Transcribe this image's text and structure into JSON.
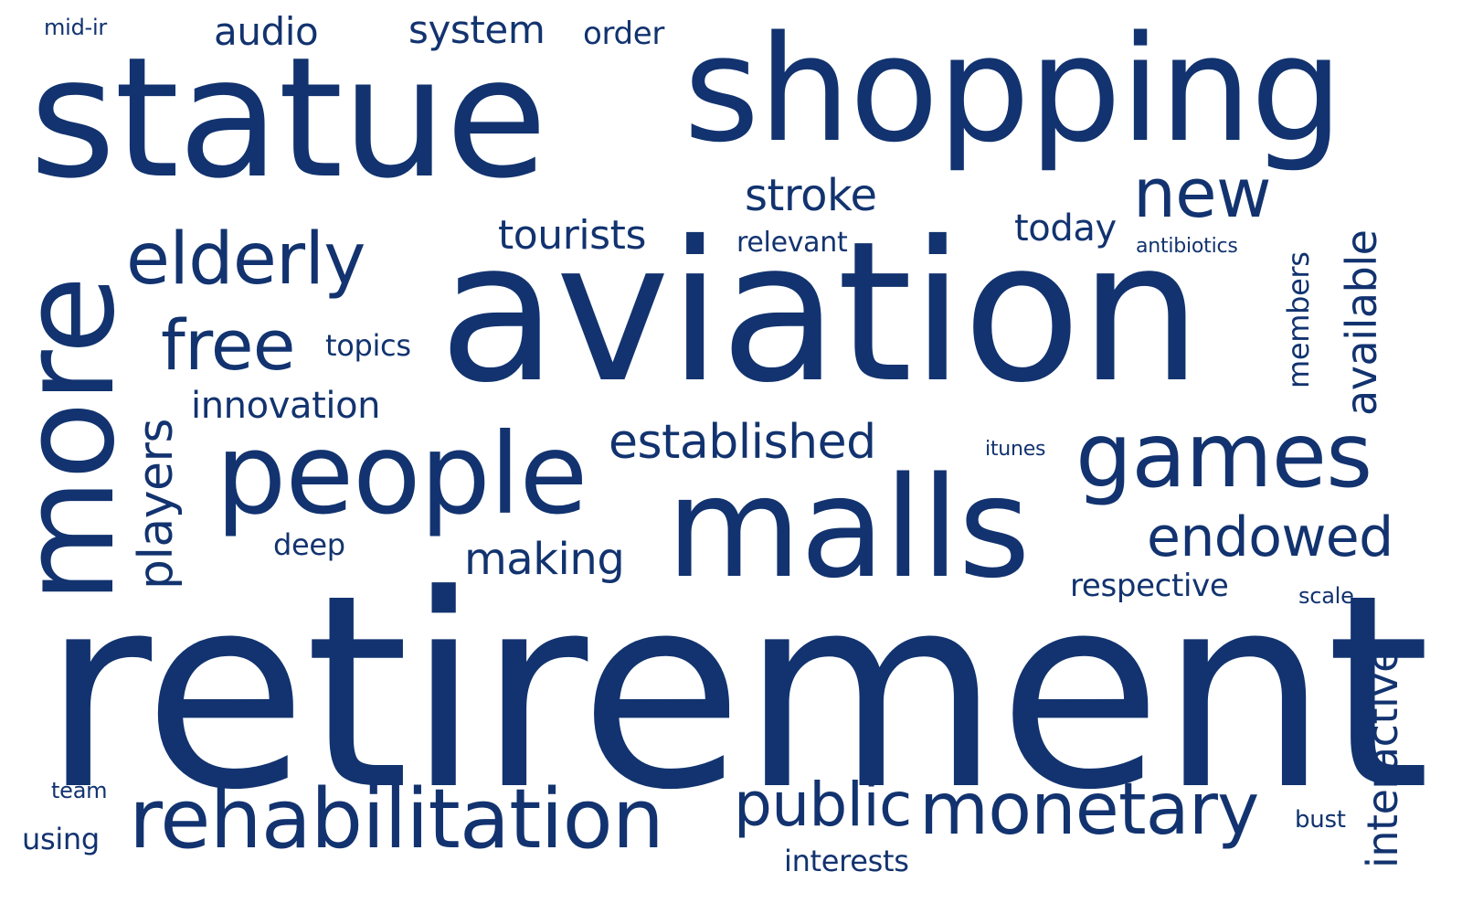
{
  "word_color": "#12336f",
  "background_color": "#ffffff",
  "words": {
    "mid_ir": "mid-ir",
    "audio": "audio",
    "system": "system",
    "order": "order",
    "statue": "statue",
    "shopping": "shopping",
    "stroke": "stroke",
    "new": "new",
    "elderly": "elderly",
    "tourists": "tourists",
    "relevant": "relevant",
    "today": "today",
    "antibiotics": "antibiotics",
    "aviation": "aviation",
    "free": "free",
    "topics": "topics",
    "innovation": "innovation",
    "established": "established",
    "itunes": "itunes",
    "games": "games",
    "people": "people",
    "malls": "malls",
    "endowed": "endowed",
    "deep": "deep",
    "making": "making",
    "respective": "respective",
    "scale": "scale",
    "retirement": "retirement",
    "team": "team",
    "rehabilitation": "rehabilitation",
    "public": "public",
    "monetary": "monetary",
    "bust": "bust",
    "using": "using",
    "interests": "interests",
    "more": "more",
    "players": "players",
    "members": "members",
    "available": "available",
    "interactive": "interactive"
  }
}
